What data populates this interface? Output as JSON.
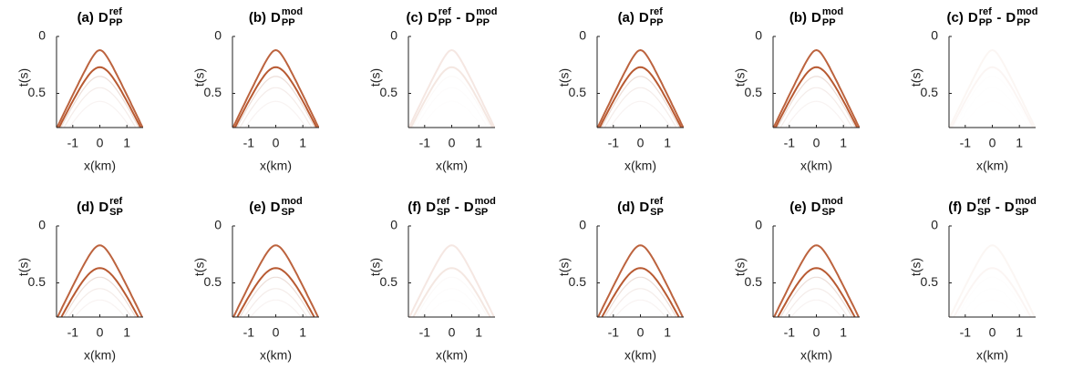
{
  "chart_data": [
    {
      "type": "image",
      "label": "(a)",
      "terms": [
        {
          "base": "D",
          "sup": "ref",
          "sub": "PP"
        }
      ],
      "xlabel": "x(km)",
      "ylabel": "t(s)",
      "xlim": [
        -1.6,
        1.6
      ],
      "ylim": [
        0,
        0.8
      ],
      "y_reversed": true,
      "xticks": [
        -1,
        0,
        1
      ],
      "yticks": [
        0,
        0.5
      ]
    },
    {
      "type": "image",
      "label": "(b)",
      "terms": [
        {
          "base": "D",
          "sup": "mod",
          "sub": "PP"
        }
      ],
      "xlabel": "x(km)",
      "ylabel": "t(s)",
      "xlim": [
        -1.6,
        1.6
      ],
      "ylim": [
        0,
        0.8
      ],
      "y_reversed": true,
      "xticks": [
        -1,
        0,
        1
      ],
      "yticks": [
        0,
        0.5
      ]
    },
    {
      "type": "image",
      "label": "(c)",
      "terms": [
        {
          "base": "D",
          "sup": "ref",
          "sub": "PP"
        },
        {
          "base": "D",
          "sup": "mod",
          "sub": "PP"
        }
      ],
      "operator": "-",
      "xlabel": "x(km)",
      "ylabel": "t(s)",
      "xlim": [
        -1.6,
        1.6
      ],
      "ylim": [
        0,
        0.8
      ],
      "y_reversed": true,
      "xticks": [
        -1,
        0,
        1
      ],
      "yticks": [
        0,
        0.5
      ]
    },
    {
      "type": "image",
      "label": "(a)",
      "terms": [
        {
          "base": "D",
          "sup": "ref",
          "sub": "PP"
        }
      ],
      "xlabel": "x(km)",
      "ylabel": "t(s)",
      "xlim": [
        -1.6,
        1.6
      ],
      "ylim": [
        0,
        0.8
      ],
      "y_reversed": true,
      "xticks": [
        -1,
        0,
        1
      ],
      "yticks": [
        0,
        0.5
      ]
    },
    {
      "type": "image",
      "label": "(b)",
      "terms": [
        {
          "base": "D",
          "sup": "mod",
          "sub": "PP"
        }
      ],
      "xlabel": "x(km)",
      "ylabel": "t(s)",
      "xlim": [
        -1.6,
        1.6
      ],
      "ylim": [
        0,
        0.8
      ],
      "y_reversed": true,
      "xticks": [
        -1,
        0,
        1
      ],
      "yticks": [
        0,
        0.5
      ]
    },
    {
      "type": "image",
      "label": "(c)",
      "terms": [
        {
          "base": "D",
          "sup": "ref",
          "sub": "PP"
        },
        {
          "base": "D",
          "sup": "mod",
          "sub": "PP"
        }
      ],
      "operator": "-",
      "xlabel": "x(km)",
      "ylabel": "t(s)",
      "xlim": [
        -1.6,
        1.6
      ],
      "ylim": [
        0,
        0.8
      ],
      "y_reversed": true,
      "xticks": [
        -1,
        0,
        1
      ],
      "yticks": [
        0,
        0.5
      ]
    },
    {
      "type": "image",
      "label": "(d)",
      "terms": [
        {
          "base": "D",
          "sup": "ref",
          "sub": "SP"
        }
      ],
      "xlabel": "x(km)",
      "ylabel": "t(s)",
      "xlim": [
        -1.6,
        1.6
      ],
      "ylim": [
        0,
        0.8
      ],
      "y_reversed": true,
      "xticks": [
        -1,
        0,
        1
      ],
      "yticks": [
        0,
        0.5
      ]
    },
    {
      "type": "image",
      "label": "(e)",
      "terms": [
        {
          "base": "D",
          "sup": "mod",
          "sub": "SP"
        }
      ],
      "xlabel": "x(km)",
      "ylabel": "t(s)",
      "xlim": [
        -1.6,
        1.6
      ],
      "ylim": [
        0,
        0.8
      ],
      "y_reversed": true,
      "xticks": [
        -1,
        0,
        1
      ],
      "yticks": [
        0,
        0.5
      ]
    },
    {
      "type": "image",
      "label": "(f)",
      "terms": [
        {
          "base": "D",
          "sup": "ref",
          "sub": "SP"
        },
        {
          "base": "D",
          "sup": "mod",
          "sub": "SP"
        }
      ],
      "operator": "-",
      "xlabel": "x(km)",
      "ylabel": "t(s)",
      "xlim": [
        -1.6,
        1.6
      ],
      "ylim": [
        0,
        0.8
      ],
      "y_reversed": true,
      "xticks": [
        -1,
        0,
        1
      ],
      "yticks": [
        0,
        0.5
      ]
    },
    {
      "type": "image",
      "label": "(d)",
      "terms": [
        {
          "base": "D",
          "sup": "ref",
          "sub": "SP"
        }
      ],
      "xlabel": "x(km)",
      "ylabel": "t(s)",
      "xlim": [
        -1.6,
        1.6
      ],
      "ylim": [
        0,
        0.8
      ],
      "y_reversed": true,
      "xticks": [
        -1,
        0,
        1
      ],
      "yticks": [
        0,
        0.5
      ]
    },
    {
      "type": "image",
      "label": "(e)",
      "terms": [
        {
          "base": "D",
          "sup": "mod",
          "sub": "SP"
        }
      ],
      "xlabel": "x(km)",
      "ylabel": "t(s)",
      "xlim": [
        -1.6,
        1.6
      ],
      "ylim": [
        0,
        0.8
      ],
      "y_reversed": true,
      "xticks": [
        -1,
        0,
        1
      ],
      "yticks": [
        0,
        0.5
      ]
    },
    {
      "type": "image",
      "label": "(f)",
      "terms": [
        {
          "base": "D",
          "sup": "ref",
          "sub": "SP"
        },
        {
          "base": "D",
          "sup": "mod",
          "sub": "SP"
        }
      ],
      "operator": "-",
      "xlabel": "x(km)",
      "ylabel": "t(s)",
      "xlim": [
        -1.6,
        1.6
      ],
      "ylim": [
        0,
        0.8
      ],
      "y_reversed": true,
      "xticks": [
        -1,
        0,
        1
      ],
      "yticks": [
        0,
        0.5
      ]
    }
  ]
}
